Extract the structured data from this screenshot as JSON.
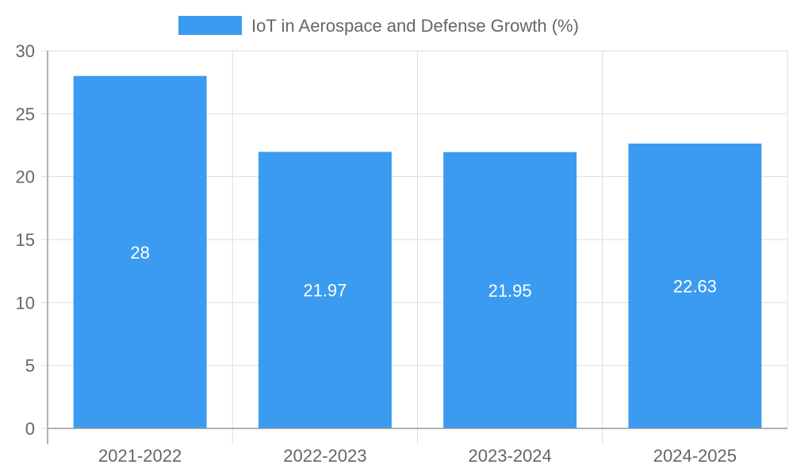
{
  "chart_data": {
    "type": "bar",
    "title": "",
    "xlabel": "",
    "ylabel": "",
    "categories": [
      "2021-2022",
      "2022-2023",
      "2023-2024",
      "2024-2025"
    ],
    "series": [
      {
        "name": "IoT in Aerospace and Defense Growth (%)",
        "values": [
          28,
          21.97,
          21.95,
          22.63
        ],
        "value_labels": [
          "28",
          "21.97",
          "21.95",
          "22.63"
        ],
        "color": "#3a9bf0"
      }
    ],
    "ylim": [
      0,
      30
    ],
    "yticks": [
      0,
      5,
      10,
      15,
      20,
      25,
      30
    ],
    "ytick_labels": [
      "0",
      "5",
      "10",
      "15",
      "20",
      "25",
      "30"
    ],
    "grid": true,
    "legend_position": "top-center"
  },
  "colors": {
    "bar": "#3a9bf0",
    "grid": "#dddddd",
    "axis": "#999999",
    "text": "#666666",
    "label": "#ffffff"
  }
}
